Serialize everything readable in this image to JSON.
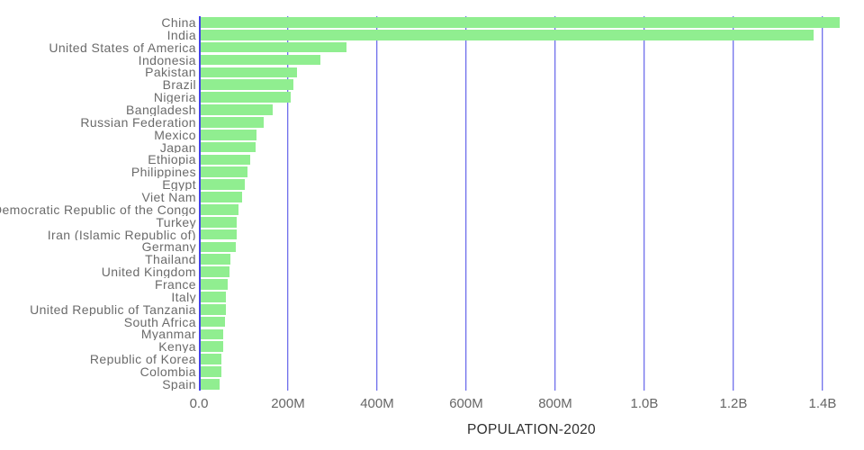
{
  "chart_data": {
    "type": "bar",
    "orientation": "horizontal",
    "title": "",
    "xlabel": "POPULATION-2020",
    "ylabel": "",
    "values_unit": "millions of people",
    "categories": [
      "China",
      "India",
      "United States of America",
      "Indonesia",
      "Pakistan",
      "Brazil",
      "Nigeria",
      "Bangladesh",
      "Russian Federation",
      "Mexico",
      "Japan",
      "Ethiopia",
      "Philippines",
      "Egypt",
      "Viet Nam",
      "Democratic Republic of the Congo",
      "Turkey",
      "Iran (Islamic Republic of)",
      "Germany",
      "Thailand",
      "United Kingdom",
      "France",
      "Italy",
      "United Republic of Tanzania",
      "South Africa",
      "Myanmar",
      "Kenya",
      "Republic of Korea",
      "Colombia",
      "Spain"
    ],
    "values": [
      1439,
      1380,
      331,
      273.5,
      220.9,
      212.6,
      206.1,
      164.7,
      145.9,
      128.9,
      126.5,
      115,
      109.6,
      102.3,
      97.3,
      89.6,
      84.3,
      84,
      83.8,
      69.8,
      67.9,
      65.3,
      60.5,
      59.7,
      59.3,
      54.4,
      53.8,
      51.3,
      50.9,
      46.8
    ],
    "xmax": 1493,
    "xticks": [
      {
        "label": "0.0",
        "value": 0
      },
      {
        "label": "200M",
        "value": 200
      },
      {
        "label": "400M",
        "value": 400
      },
      {
        "label": "600M",
        "value": 600
      },
      {
        "label": "800M",
        "value": 800
      },
      {
        "label": "1.0B",
        "value": 1000
      },
      {
        "label": "1.2B",
        "value": 1200
      },
      {
        "label": "1.4B",
        "value": 1400
      }
    ],
    "grid": true,
    "legend": false,
    "colors": {
      "bar": "#90ee90",
      "gridline": "#4343e6",
      "category_label": "#6b6b6b",
      "tick_label": "#666666",
      "axis_title": "#2f2f2f",
      "background": "#ffffff"
    }
  }
}
